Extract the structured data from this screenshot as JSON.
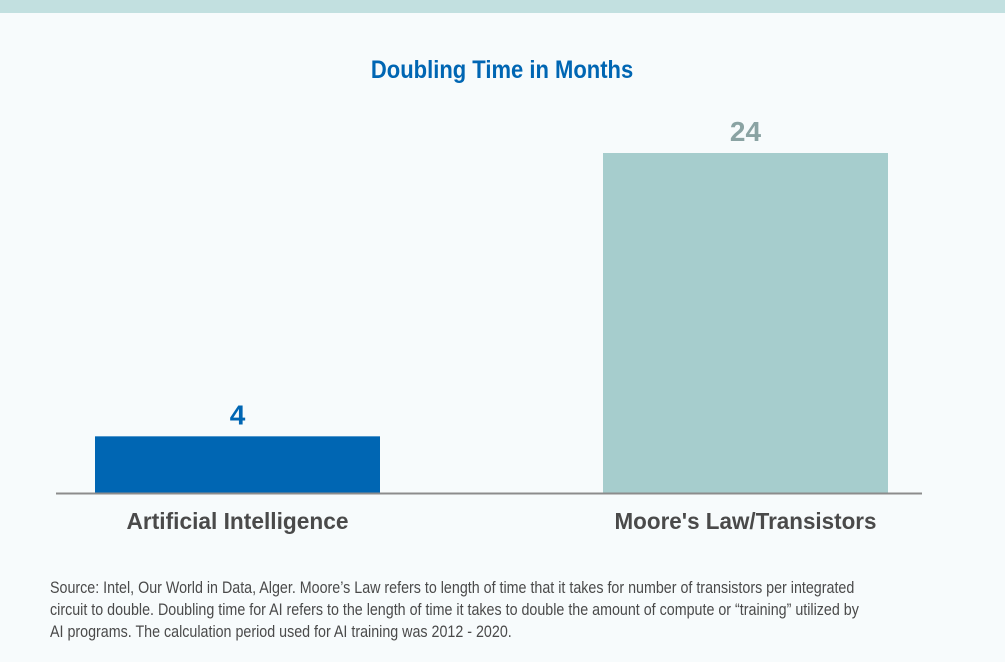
{
  "chart_data": {
    "type": "bar",
    "title": "Doubling Time in Months",
    "categories": [
      "Artificial Intelligence",
      "Moore's Law/Transistors"
    ],
    "values": [
      4,
      24
    ],
    "data_labels": [
      "4",
      "24"
    ],
    "colors": [
      "#0066b3",
      "#a6cdcd"
    ],
    "label_colors": [
      "#0066b3",
      "#8aa3a3"
    ],
    "ylim": [
      0,
      24
    ],
    "grid": false,
    "legend": "none"
  },
  "footnote": {
    "lines": [
      "Source: Intel, Our World in Data, Alger. Moore’s Law refers to length of time that it takes for number of transistors per integrated",
      "circuit to double. Doubling time for AI refers to the length of time it takes to double the amount of compute or “training” utilized by",
      "AI programs. The calculation period used for AI training was 2012 - 2020."
    ]
  }
}
